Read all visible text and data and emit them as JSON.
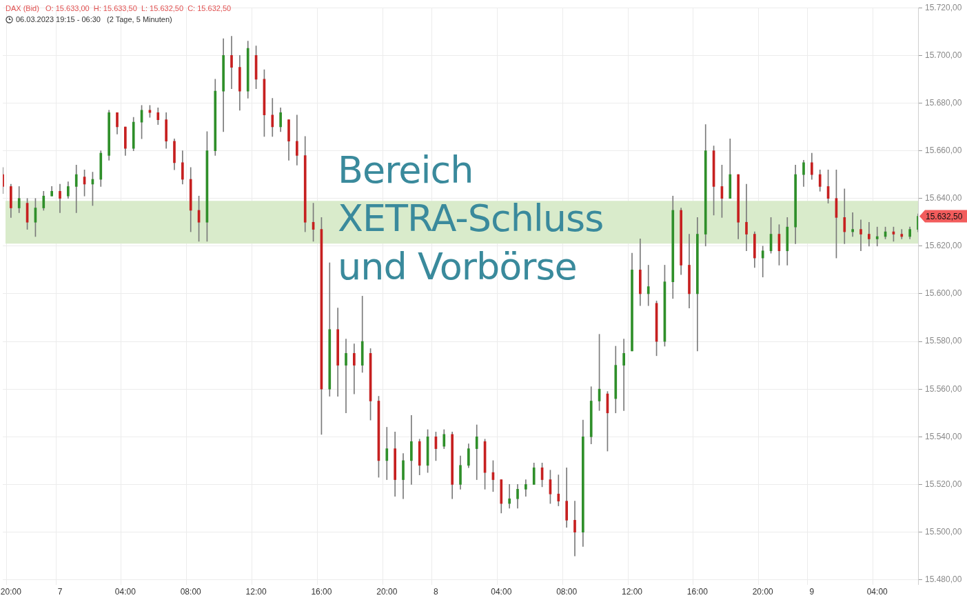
{
  "chart_data": {
    "type": "candlestick",
    "title": "DAX (Bid)   O: 15.633,00  H: 15.633,50  L: 15.632,50  C: 15.632,50",
    "subtitle": "06.03.2023 19:15 - 06:30   (2 Tage, 5 Minuten)",
    "categories": [
      null,
      "20:00",
      null,
      null,
      null,
      null,
      null,
      "7",
      null,
      null,
      null,
      null,
      null,
      null,
      null,
      "04:00",
      null,
      null,
      null,
      null,
      null,
      null,
      null,
      "08:00",
      null,
      null,
      null,
      null,
      null,
      null,
      null,
      "12:00",
      null,
      null,
      null,
      null,
      null,
      null,
      null,
      "16:00",
      null,
      null,
      null,
      null,
      null,
      null,
      null,
      "20:00",
      null,
      null,
      null,
      null,
      null,
      "8",
      null,
      null,
      null,
      null,
      null,
      null,
      null,
      "04:00",
      null,
      null,
      null,
      null,
      null,
      null,
      null,
      "08:00",
      null,
      null,
      null,
      null,
      null,
      null,
      null,
      "12:00",
      null,
      null,
      null,
      null,
      null,
      null,
      null,
      "16:00",
      null,
      null,
      null,
      null,
      null,
      null,
      null,
      "20:00",
      null,
      null,
      null,
      null,
      null,
      "9",
      null,
      null,
      null,
      null,
      null,
      null,
      null,
      "04:00",
      null,
      null,
      null,
      null,
      null
    ],
    "ohlc": [
      [
        15650,
        15653,
        15642,
        15645
      ],
      [
        15645,
        15646,
        15632,
        15636
      ],
      [
        15636,
        15645,
        15634,
        15640
      ],
      [
        15638,
        15640,
        15627,
        15630
      ],
      [
        15630,
        15640,
        15624,
        15636
      ],
      [
        15636,
        15643,
        15635,
        15641
      ],
      [
        15641,
        15645,
        15641,
        15643
      ],
      [
        15643,
        15646,
        15634,
        15640
      ],
      [
        15641,
        15647,
        15640,
        15645
      ],
      [
        15645,
        15654,
        15634,
        15650
      ],
      [
        15649,
        15652,
        15641,
        15646
      ],
      [
        15646,
        15651,
        15637,
        15648
      ],
      [
        15648,
        15660,
        15645,
        15659
      ],
      [
        15658,
        15677,
        15656,
        15676
      ],
      [
        15676,
        15676,
        15667,
        15670
      ],
      [
        15670,
        15670,
        15658,
        15661
      ],
      [
        15661,
        15674,
        15660,
        15672
      ],
      [
        15672,
        15679,
        15665,
        15677
      ],
      [
        15677,
        15679,
        15674,
        15676
      ],
      [
        15676,
        15678,
        15671,
        15673
      ],
      [
        15673,
        15676,
        15661,
        15664
      ],
      [
        15664,
        15665,
        15652,
        15655
      ],
      [
        15655,
        15660,
        15646,
        15648
      ],
      [
        15648,
        15653,
        15626,
        15635
      ],
      [
        15635,
        15641,
        15622,
        15630
      ],
      [
        15630,
        15668,
        15622,
        15660
      ],
      [
        15660,
        15690,
        15658,
        15685
      ],
      [
        15685,
        15707,
        15668,
        15700
      ],
      [
        15700,
        15708,
        15686,
        15695
      ],
      [
        15695,
        15700,
        15677,
        15685
      ],
      [
        15685,
        15706,
        15682,
        15703
      ],
      [
        15700,
        15704,
        15686,
        15690
      ],
      [
        15690,
        15694,
        15666,
        15675
      ],
      [
        15675,
        15682,
        15666,
        15670
      ],
      [
        15670,
        15678,
        15668,
        15676
      ],
      [
        15673,
        15673,
        15656,
        15664
      ],
      [
        15664,
        15675,
        15654,
        15658
      ],
      [
        15658,
        15666,
        15626,
        15630
      ],
      [
        15630,
        15638,
        15622,
        15627
      ],
      [
        15627,
        15632,
        15541,
        15560
      ],
      [
        15560,
        15613,
        15557,
        15585
      ],
      [
        15585,
        15594,
        15557,
        15570
      ],
      [
        15570,
        15581,
        15550,
        15575
      ],
      [
        15575,
        15579,
        15558,
        15570
      ],
      [
        15570,
        15599,
        15567,
        15580
      ],
      [
        15575,
        15577,
        15547,
        15555
      ],
      [
        15555,
        15557,
        15523,
        15530
      ],
      [
        15530,
        15544,
        15522,
        15535
      ],
      [
        15535,
        15542,
        15515,
        15522
      ],
      [
        15522,
        15533,
        15514,
        15530
      ],
      [
        15530,
        15549,
        15520,
        15538
      ],
      [
        15538,
        15539,
        15524,
        15528
      ],
      [
        15528,
        15543,
        15525,
        15540
      ],
      [
        15540,
        15542,
        15530,
        15535
      ],
      [
        15536,
        15543,
        15535,
        15541
      ],
      [
        15541,
        15542,
        15514,
        15520
      ],
      [
        15520,
        15532,
        15518,
        15528
      ],
      [
        15528,
        15537,
        15527,
        15535
      ],
      [
        15535,
        15545,
        15522,
        15540
      ],
      [
        15538,
        15539,
        15518,
        15525
      ],
      [
        15525,
        15530,
        15517,
        15522
      ],
      [
        15522,
        15522,
        15508,
        15512
      ],
      [
        15512,
        15520,
        15510,
        15514
      ],
      [
        15514,
        15520,
        15510,
        15518
      ],
      [
        15518,
        15522,
        15515,
        15520
      ],
      [
        15520,
        15529,
        15520,
        15527
      ],
      [
        15527,
        15529,
        15519,
        15522
      ],
      [
        15522,
        15526,
        15512,
        15516
      ],
      [
        15516,
        15524,
        15511,
        15513
      ],
      [
        15513,
        15527,
        15502,
        15505
      ],
      [
        15505,
        15513,
        15490,
        15500
      ],
      [
        15500,
        15547,
        15494,
        15540
      ],
      [
        15540,
        15561,
        15537,
        15555
      ],
      [
        15555,
        15583,
        15551,
        15560
      ],
      [
        15558,
        15559,
        15534,
        15550
      ],
      [
        15556,
        15578,
        15550,
        15570
      ],
      [
        15570,
        15581,
        15551,
        15575
      ],
      [
        15576,
        15617,
        15576,
        15610
      ],
      [
        15610,
        15623,
        15595,
        15600
      ],
      [
        15600,
        15612,
        15595,
        15603
      ],
      [
        15596,
        15597,
        15574,
        15580
      ],
      [
        15580,
        15612,
        15578,
        15605
      ],
      [
        15605,
        15641,
        15598,
        15635
      ],
      [
        15635,
        15636,
        15608,
        15612
      ],
      [
        15612,
        15625,
        15594,
        15600
      ],
      [
        15600,
        15632,
        15576,
        15625
      ],
      [
        15625,
        15671,
        15620,
        15660
      ],
      [
        15660,
        15662,
        15633,
        15645
      ],
      [
        15645,
        15654,
        15632,
        15640
      ],
      [
        15640,
        15665,
        15640,
        15650
      ],
      [
        15650,
        15650,
        15623,
        15630
      ],
      [
        15630,
        15646,
        15618,
        15625
      ],
      [
        15625,
        15626,
        15611,
        15615
      ],
      [
        15615,
        15620,
        15607,
        15618
      ],
      [
        15618,
        15632,
        15617,
        15625
      ],
      [
        15625,
        15629,
        15612,
        15618
      ],
      [
        15618,
        15632,
        15612,
        15628
      ],
      [
        15628,
        15654,
        15621,
        15650
      ],
      [
        15650,
        15656,
        15645,
        15655
      ],
      [
        15655,
        15659,
        15648,
        15650
      ],
      [
        15650,
        15652,
        15643,
        15645
      ],
      [
        15645,
        15652,
        15638,
        15640
      ],
      [
        15640,
        15652,
        15615,
        15632
      ],
      [
        15632,
        15644,
        15621,
        15626
      ],
      [
        15626,
        15634,
        15624,
        15627
      ],
      [
        15627,
        15631,
        15618,
        15625
      ],
      [
        15625,
        15630,
        15620,
        15623
      ],
      [
        15623,
        15628,
        15620,
        15624
      ],
      [
        15624,
        15628,
        15623,
        15626
      ],
      [
        15626,
        15628,
        15622,
        15625
      ],
      [
        15625,
        15627,
        15623,
        15624
      ],
      [
        15624,
        15628,
        15623,
        15627
      ],
      [
        15627,
        15633.5,
        15626,
        15632.5
      ]
    ],
    "ylim": [
      15478,
      15720
    ],
    "yticks": [
      {
        "value": 15480,
        "label": "15.480,00"
      },
      {
        "value": 15500,
        "label": "15.500,00"
      },
      {
        "value": 15520,
        "label": "15.520,00"
      },
      {
        "value": 15540,
        "label": "15.540,00"
      },
      {
        "value": 15560,
        "label": "15.560,00"
      },
      {
        "value": 15580,
        "label": "15.580,00"
      },
      {
        "value": 15600,
        "label": "15.600,00"
      },
      {
        "value": 15620,
        "label": "15.620,00"
      },
      {
        "value": 15640,
        "label": "15.640,00"
      },
      {
        "value": 15660,
        "label": "15.660,00"
      },
      {
        "value": 15680,
        "label": "15.680,00"
      },
      {
        "value": 15700,
        "label": "15.700,00"
      },
      {
        "value": 15720,
        "label": "15.720,00"
      }
    ],
    "grid": true,
    "legend": false,
    "bands": [
      {
        "axis": "y",
        "from": 15621,
        "to": 15639,
        "label": "Bereich XETRA-Schluss und Vorbörse",
        "color": "#d9ebcb"
      }
    ],
    "annotations": [
      "15.632,50"
    ]
  }
}
